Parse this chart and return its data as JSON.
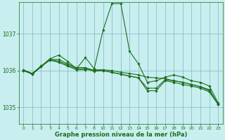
{
  "title": "Graphe pression niveau de la mer (hPa)",
  "bg_color": "#c8eef0",
  "grid_color": "#7db8c0",
  "line_color": "#1a6e1a",
  "xlim": [
    -0.5,
    23.5
  ],
  "ylim": [
    1034.55,
    1037.85
  ],
  "yticks": [
    1035,
    1036,
    1037
  ],
  "xtick_vals": [
    0,
    1,
    2,
    3,
    4,
    5,
    6,
    7,
    8,
    10,
    11,
    12,
    13,
    14,
    15,
    16,
    17,
    18,
    19,
    20,
    21,
    22,
    23
  ],
  "xtick_positions": [
    0,
    1,
    2,
    3,
    4,
    5,
    6,
    7,
    8,
    9,
    10,
    11,
    12,
    13,
    14,
    15,
    16,
    17,
    18,
    19,
    20,
    21,
    22
  ],
  "series": [
    {
      "xh": [
        0,
        1,
        2,
        3,
        4,
        5,
        6,
        7,
        8,
        10,
        11,
        12,
        13,
        14,
        15,
        16,
        17,
        18,
        19,
        20,
        21,
        22,
        23
      ],
      "xp": [
        0,
        1,
        2,
        3,
        4,
        5,
        6,
        7,
        8,
        9,
        10,
        11,
        12,
        13,
        14,
        15,
        16,
        17,
        18,
        19,
        20,
        21,
        22
      ],
      "y": [
        1036.0,
        1035.92,
        1036.12,
        1036.32,
        1036.42,
        1036.25,
        1036.05,
        1036.35,
        1036.05,
        1037.1,
        1037.82,
        1037.82,
        1036.52,
        1036.18,
        1035.68,
        1035.72,
        1035.82,
        1035.88,
        1035.82,
        1035.72,
        1035.68,
        1035.58,
        1035.12
      ]
    },
    {
      "xh": [
        0,
        1,
        2,
        3,
        4,
        5,
        6,
        7,
        8,
        10,
        11,
        12,
        13,
        14,
        15,
        16,
        17,
        18,
        19,
        20,
        21,
        22,
        23
      ],
      "xp": [
        0,
        1,
        2,
        3,
        4,
        5,
        6,
        7,
        8,
        9,
        10,
        11,
        12,
        13,
        14,
        15,
        16,
        17,
        18,
        19,
        20,
        21,
        22
      ],
      "y": [
        1036.02,
        1035.92,
        1036.12,
        1036.28,
        1036.22,
        1036.12,
        1036.02,
        1036.02,
        1036.02,
        1036.02,
        1036.0,
        1035.95,
        1035.92,
        1035.88,
        1035.82,
        1035.8,
        1035.78,
        1035.72,
        1035.68,
        1035.62,
        1035.56,
        1035.48,
        1035.08
      ]
    },
    {
      "xh": [
        0,
        1,
        2,
        3,
        4,
        5,
        6,
        7,
        8,
        10,
        11,
        12,
        13,
        14,
        15,
        16,
        17,
        18,
        19,
        20,
        21,
        22,
        23
      ],
      "xp": [
        0,
        1,
        2,
        3,
        4,
        5,
        6,
        7,
        8,
        9,
        10,
        11,
        12,
        13,
        14,
        15,
        16,
        17,
        18,
        19,
        20,
        21,
        22
      ],
      "y": [
        1036.0,
        1035.9,
        1036.1,
        1036.3,
        1036.3,
        1036.18,
        1036.08,
        1036.08,
        1036.0,
        1036.0,
        1035.95,
        1035.9,
        1035.85,
        1035.8,
        1035.52,
        1035.52,
        1035.75,
        1035.72,
        1035.68,
        1035.62,
        1035.56,
        1035.45,
        1035.08
      ]
    },
    {
      "xh": [
        0,
        1,
        2,
        3,
        4,
        5,
        6,
        7,
        8,
        10,
        11,
        12,
        13,
        14,
        15,
        16,
        17,
        18,
        19,
        20,
        21,
        22,
        23
      ],
      "xp": [
        0,
        1,
        2,
        3,
        4,
        5,
        6,
        7,
        8,
        9,
        10,
        11,
        12,
        13,
        14,
        15,
        16,
        17,
        18,
        19,
        20,
        21,
        22
      ],
      "y": [
        1036.0,
        1035.9,
        1036.1,
        1036.3,
        1036.25,
        1036.15,
        1036.05,
        1036.05,
        1035.98,
        1036.0,
        1035.95,
        1035.9,
        1035.85,
        1035.8,
        1035.45,
        1035.45,
        1035.72,
        1035.68,
        1035.62,
        1035.58,
        1035.52,
        1035.42,
        1035.08
      ]
    }
  ]
}
